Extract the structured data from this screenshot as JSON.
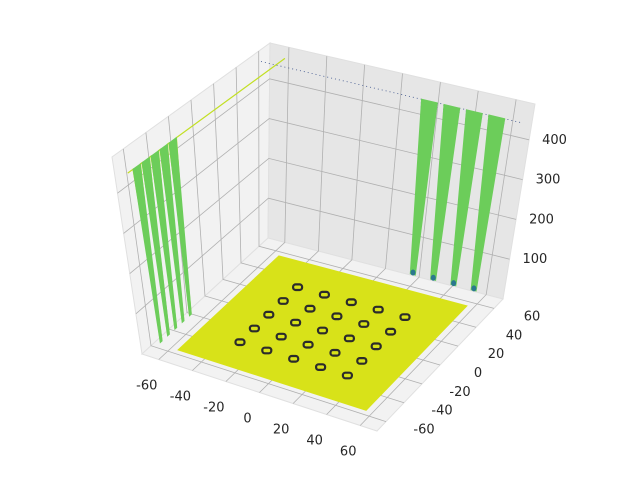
{
  "chart_data": {
    "type": "surface3d",
    "title": "",
    "xlabel": "",
    "ylabel": "",
    "zlabel": "",
    "xlim": [
      -70,
      70
    ],
    "ylim": [
      -70,
      70
    ],
    "zlim": [
      0,
      490
    ],
    "x_ticks": [
      "-60",
      "-40",
      "-20",
      "0",
      "20",
      "40",
      "60"
    ],
    "y_ticks": [
      "-60",
      "-40",
      "-20",
      "0",
      "20",
      "40",
      "60"
    ],
    "z_ticks": [
      "100",
      "200",
      "300",
      "400"
    ],
    "grid": true,
    "colormap": "viridis",
    "floor_color": "#d8e219",
    "wall_color": "#6ccd5a",
    "wall_edge_color": "#c2df23",
    "well_color": "#2a788e",
    "marker_color": "#2b2b2b",
    "floor_level": 0,
    "plateau_level": 460,
    "well_centers_x": [
      -32,
      -16,
      0,
      16,
      32
    ],
    "well_centers_y": [
      -32,
      -16,
      0,
      16,
      32
    ],
    "well_rows_visible_y": [
      -70,
      -62,
      -54,
      -46,
      -38
    ],
    "well_cols_visible_x": [
      -38,
      -30,
      -22,
      -14,
      -6
    ]
  }
}
